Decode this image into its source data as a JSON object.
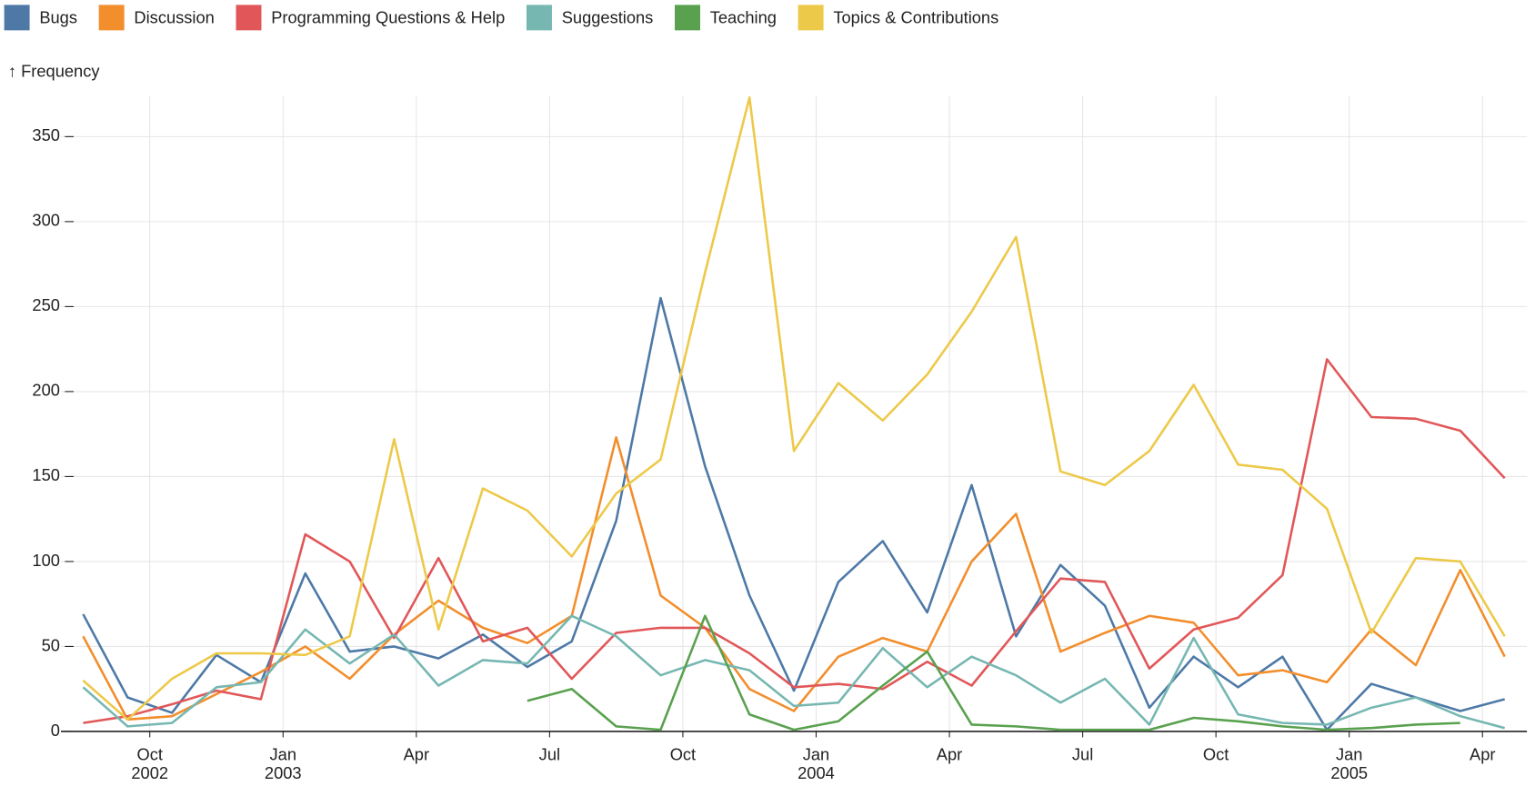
{
  "chart_data": {
    "type": "line",
    "y_label": "↑ Frequency",
    "x": [
      "2002-08",
      "2002-09",
      "2002-10",
      "2002-11",
      "2002-12",
      "2003-01",
      "2003-02",
      "2003-03",
      "2003-04",
      "2003-05",
      "2003-06",
      "2003-07",
      "2003-08",
      "2003-09",
      "2003-10",
      "2003-11",
      "2003-12",
      "2004-01",
      "2004-02",
      "2004-03",
      "2004-04",
      "2004-05",
      "2004-06",
      "2004-07",
      "2004-08",
      "2004-09",
      "2004-10",
      "2004-11",
      "2004-12",
      "2005-01",
      "2005-02",
      "2005-03",
      "2005-04"
    ],
    "series": [
      {
        "name": "Bugs",
        "color": "#4e79a7",
        "values": [
          69,
          20,
          11,
          45,
          29,
          93,
          47,
          50,
          43,
          57,
          38,
          53,
          124,
          255,
          156,
          80,
          24,
          88,
          112,
          70,
          145,
          56,
          98,
          74,
          14,
          44,
          26,
          44,
          1,
          28,
          20,
          12,
          19
        ]
      },
      {
        "name": "Discussion",
        "color": "#f28e2c",
        "values": [
          56,
          7,
          9,
          22,
          35,
          50,
          31,
          57,
          77,
          61,
          52,
          68,
          173,
          80,
          61,
          25,
          12,
          44,
          55,
          47,
          100,
          128,
          47,
          58,
          68,
          64,
          33,
          36,
          29,
          60,
          39,
          95,
          44
        ]
      },
      {
        "name": "Programming Questions & Help",
        "color": "#e15759",
        "values": [
          5,
          9,
          16,
          24,
          19,
          116,
          100,
          55,
          102,
          53,
          61,
          31,
          58,
          61,
          61,
          46,
          26,
          28,
          25,
          41,
          27,
          59,
          90,
          88,
          37,
          60,
          67,
          92,
          219,
          185,
          184,
          177,
          149
        ]
      },
      {
        "name": "Suggestions",
        "color": "#76b7b2",
        "values": [
          26,
          3,
          5,
          26,
          29,
          60,
          40,
          57,
          27,
          42,
          40,
          68,
          56,
          33,
          42,
          36,
          15,
          17,
          49,
          26,
          44,
          33,
          17,
          31,
          4,
          55,
          10,
          5,
          4,
          14,
          20,
          9,
          2
        ]
      },
      {
        "name": "Teaching",
        "color": "#59a14f",
        "values": [
          null,
          null,
          null,
          null,
          null,
          null,
          null,
          null,
          null,
          null,
          18,
          25,
          3,
          1,
          68,
          10,
          1,
          6,
          27,
          47,
          4,
          3,
          1,
          1,
          1,
          8,
          6,
          3,
          1,
          2,
          4,
          5,
          null
        ]
      },
      {
        "name": "Topics & Contributions",
        "color": "#edc949",
        "values": [
          30,
          7,
          31,
          46,
          46,
          45,
          56,
          172,
          60,
          143,
          130,
          103,
          140,
          160,
          270,
          373,
          165,
          205,
          183,
          210,
          247,
          291,
          153,
          145,
          165,
          204,
          157,
          154,
          131,
          58,
          102,
          100,
          56
        ]
      }
    ],
    "xlim": [
      "2002-08",
      "2005-05"
    ],
    "xticks": [
      {
        "value": "2002-10",
        "label": [
          "Oct",
          "2002"
        ]
      },
      {
        "value": "2003-01",
        "label": [
          "Jan",
          "2003"
        ]
      },
      {
        "value": "2003-04",
        "label": [
          "Apr"
        ]
      },
      {
        "value": "2003-07",
        "label": [
          "Jul"
        ]
      },
      {
        "value": "2003-10",
        "label": [
          "Oct"
        ]
      },
      {
        "value": "2004-01",
        "label": [
          "Jan",
          "2004"
        ]
      },
      {
        "value": "2004-04",
        "label": [
          "Apr"
        ]
      },
      {
        "value": "2004-07",
        "label": [
          "Jul"
        ]
      },
      {
        "value": "2004-10",
        "label": [
          "Oct"
        ]
      },
      {
        "value": "2005-01",
        "label": [
          "Jan",
          "2005"
        ]
      },
      {
        "value": "2005-04",
        "label": [
          "Apr"
        ]
      }
    ],
    "ylim": [
      0,
      374
    ],
    "yticks": [
      0,
      50,
      100,
      150,
      200,
      250,
      300,
      350
    ],
    "grid": true
  }
}
